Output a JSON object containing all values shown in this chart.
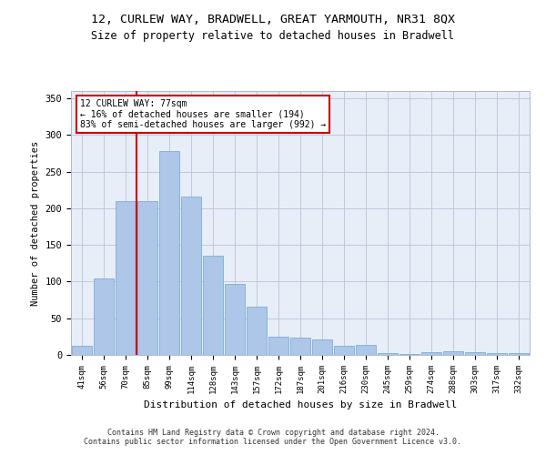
{
  "title": "12, CURLEW WAY, BRADWELL, GREAT YARMOUTH, NR31 8QX",
  "subtitle": "Size of property relative to detached houses in Bradwell",
  "xlabel": "Distribution of detached houses by size in Bradwell",
  "ylabel": "Number of detached properties",
  "categories": [
    "41sqm",
    "56sqm",
    "70sqm",
    "85sqm",
    "99sqm",
    "114sqm",
    "128sqm",
    "143sqm",
    "157sqm",
    "172sqm",
    "187sqm",
    "201sqm",
    "216sqm",
    "230sqm",
    "245sqm",
    "259sqm",
    "274sqm",
    "288sqm",
    "303sqm",
    "317sqm",
    "332sqm"
  ],
  "values": [
    13,
    104,
    210,
    210,
    278,
    216,
    135,
    97,
    66,
    25,
    23,
    21,
    13,
    14,
    3,
    1,
    4,
    5,
    4,
    2,
    3
  ],
  "bar_color": "#aec6e8",
  "bar_edgecolor": "#7bafd4",
  "red_line_x": 2.5,
  "annotation_text": "12 CURLEW WAY: 77sqm\n← 16% of detached houses are smaller (194)\n83% of semi-detached houses are larger (992) →",
  "annotation_box_color": "#ffffff",
  "annotation_box_edgecolor": "#cc0000",
  "ylim": [
    0,
    360
  ],
  "yticks": [
    0,
    50,
    100,
    150,
    200,
    250,
    300,
    350
  ],
  "footer_line1": "Contains HM Land Registry data © Crown copyright and database right 2024.",
  "footer_line2": "Contains public sector information licensed under the Open Government Licence v3.0.",
  "plot_bg_color": "#e8eef8",
  "title_fontsize": 9.5,
  "subtitle_fontsize": 8.5
}
